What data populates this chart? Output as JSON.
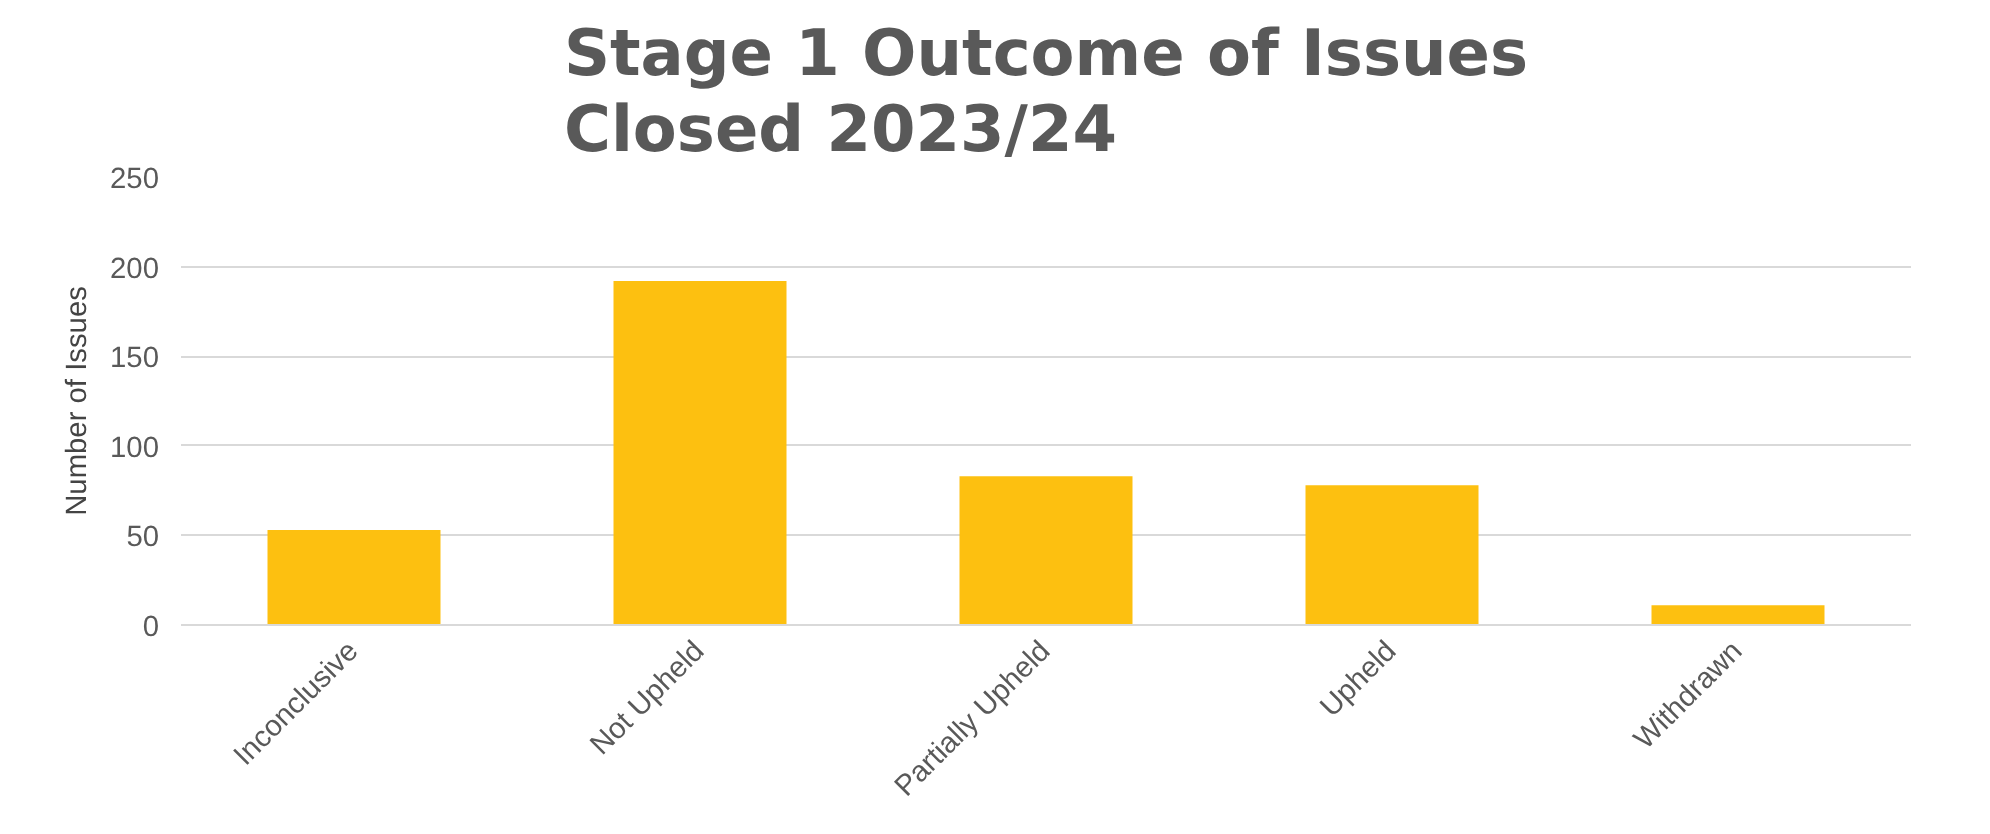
{
  "chart_data": {
    "type": "bar",
    "title": "Stage 1 Outcome of Issues\nClosed 2023/24",
    "ylabel": "Number of Issues",
    "categories": [
      "Inconclusive",
      "Not Upheld",
      "Partially Upheld",
      "Upheld",
      "Withdrawn"
    ],
    "values": [
      53,
      192,
      83,
      78,
      11
    ],
    "color": "#fdc010",
    "ylim": [
      0,
      250
    ],
    "yticks": [
      0,
      50,
      100,
      150,
      200,
      250
    ],
    "grid": "y"
  }
}
